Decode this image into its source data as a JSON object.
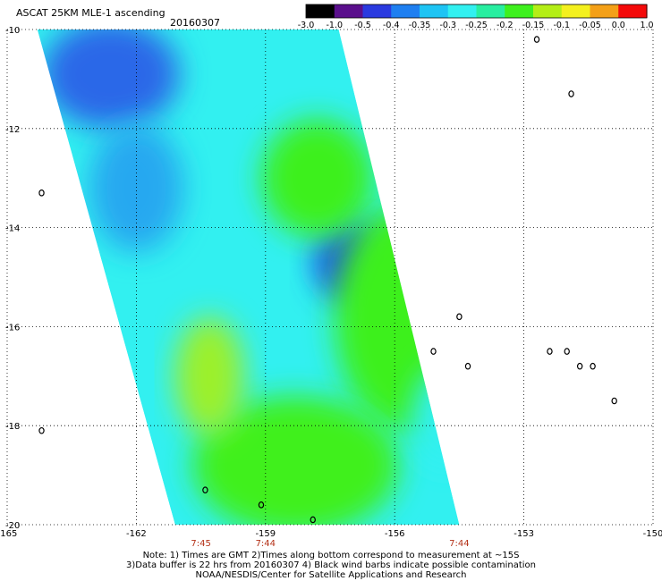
{
  "header": {
    "title": "ASCAT 25KM MLE-1 ascending",
    "date": "20160307"
  },
  "colorbar": {
    "stops": [
      "#000000",
      "#5a0f8c",
      "#2a3adf",
      "#1f7ff0",
      "#1ec4f4",
      "#32f0f0",
      "#28eea0",
      "#3ef01e",
      "#b4ee16",
      "#f4f01e",
      "#f4a018",
      "#f40a0a"
    ],
    "labels": [
      "-3.0",
      "-1.0",
      "-0.5",
      "-0.4",
      "-0.35",
      "-0.3",
      "-0.25",
      "-0.2",
      "-0.15",
      "-0.1",
      "-0.05",
      "0.0",
      "1.0"
    ]
  },
  "map": {
    "lon_range": [
      -165,
      -150
    ],
    "lat_range": [
      -20,
      -10
    ],
    "lon_ticks": [
      "-165",
      "-162",
      "-159",
      "-156",
      "-153",
      "-150"
    ],
    "lat_ticks": [
      "-10",
      "-12",
      "-14",
      "-16",
      "-18",
      "-20"
    ],
    "gridlines": true,
    "grid_color": "#000000"
  },
  "swath": {
    "corners": [
      {
        "lon": -164.3,
        "lat": -10.0
      },
      {
        "lon": -157.3,
        "lat": -10.0
      },
      {
        "lon": -154.5,
        "lat": -20.0
      },
      {
        "lon": -161.1,
        "lat": -20.0
      }
    ],
    "background_color": "#32f0f0",
    "regions": [
      {
        "name": "blue-northwest",
        "lon": -162.6,
        "lat": -10.9,
        "rx_deg": 1.6,
        "ry_deg": 1.1,
        "color": "#2a68e8"
      },
      {
        "name": "blue-west",
        "lon": -162.0,
        "lat": -13.2,
        "rx_deg": 1.1,
        "ry_deg": 1.3,
        "color": "#27a8f0"
      },
      {
        "name": "blue-core",
        "lon": -157.0,
        "lat": -14.7,
        "rx_deg": 0.9,
        "ry_deg": 0.8,
        "color": "#1a52e8"
      },
      {
        "name": "green-center",
        "lon": -157.8,
        "lat": -13.0,
        "rx_deg": 1.3,
        "ry_deg": 1.2,
        "color": "#3ef01e"
      },
      {
        "name": "green-east",
        "lon": -155.7,
        "lat": -15.8,
        "rx_deg": 1.7,
        "ry_deg": 2.3,
        "color": "#3ef01e"
      },
      {
        "name": "green-south",
        "lon": -158.3,
        "lat": -18.8,
        "rx_deg": 2.4,
        "ry_deg": 1.4,
        "color": "#40f01e"
      },
      {
        "name": "yellow-green-sw",
        "lon": -160.3,
        "lat": -17.0,
        "rx_deg": 0.8,
        "ry_deg": 1.2,
        "color": "#9cf02a"
      },
      {
        "name": "cyan-east",
        "lon": -154.8,
        "lat": -17.8,
        "rx_deg": 0.8,
        "ry_deg": 1.0,
        "color": "#32f0f0"
      }
    ]
  },
  "time_labels": [
    {
      "text": "7:45",
      "lon": -160.5
    },
    {
      "text": "7:44",
      "lon": -159.0
    },
    {
      "text": "7:44",
      "lon": -154.5
    }
  ],
  "time_label_color": "#b43218",
  "islands": [
    {
      "lon": -164.2,
      "lat": -13.3
    },
    {
      "lon": -164.2,
      "lat": -18.1
    },
    {
      "lon": -155.1,
      "lat": -16.5
    },
    {
      "lon": -154.5,
      "lat": -15.8
    },
    {
      "lon": -154.3,
      "lat": -16.8
    },
    {
      "lon": -152.7,
      "lat": -10.2
    },
    {
      "lon": -151.9,
      "lat": -11.3
    },
    {
      "lon": -152.4,
      "lat": -16.5
    },
    {
      "lon": -152.0,
      "lat": -16.5
    },
    {
      "lon": -151.7,
      "lat": -16.8
    },
    {
      "lon": -151.4,
      "lat": -16.8
    },
    {
      "lon": -150.9,
      "lat": -17.5
    },
    {
      "lon": -160.4,
      "lat": -19.3
    },
    {
      "lon": -159.1,
      "lat": -19.6
    },
    {
      "lon": -157.9,
      "lat": -19.9
    }
  ],
  "notes": {
    "line1": "Note: 1) Times are GMT 2)Times along bottom correspond to measurement at ~15S",
    "line2": "3)Data buffer is 22 hrs from 20160307 4) Black wind barbs indicate possible contamination",
    "line3": "NOAA/NESDIS/Center for Satellite Applications and Research"
  }
}
